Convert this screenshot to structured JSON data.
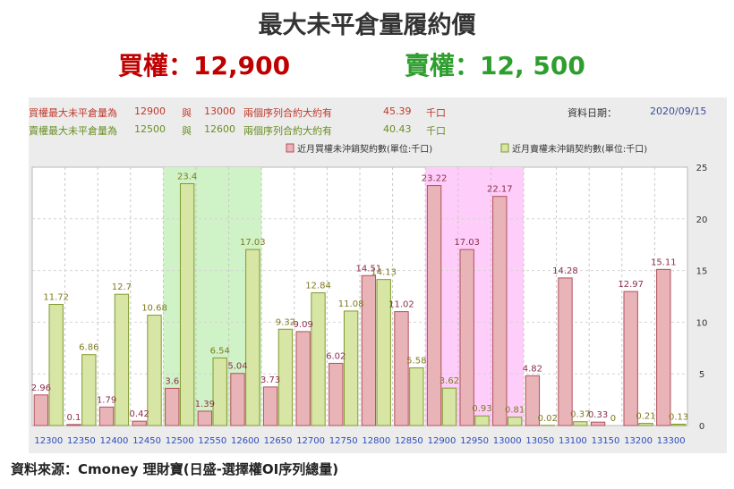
{
  "header": {
    "title": "最大未平倉量履約價",
    "call_label": "買權：12,900",
    "put_label": "賣權：12, 500"
  },
  "info": {
    "call_line": {
      "prefix": "買權最大未平倉量為",
      "strike1": "12900",
      "conj": "與",
      "strike2": "13000",
      "desc": "兩個序列合約大約有",
      "value": "45.39",
      "unit": "千口"
    },
    "put_line": {
      "prefix": "賣權最大未平倉量為",
      "strike1": "12500",
      "conj": "與",
      "strike2": "12600",
      "desc": "兩個序列合約大約有",
      "value": "40.43",
      "unit": "千口"
    },
    "date_label": "資料日期：",
    "date_value": "2020/09/15"
  },
  "footer": {
    "source": "資料來源：Cmoney 理財寶(日盛-選擇權OI序列總量)"
  },
  "colors": {
    "call_fill": "#e8b4b8",
    "call_stroke": "#b2505b",
    "put_fill": "#d7e5a5",
    "put_stroke": "#7f9a2e",
    "call_highlight": "#ffcdfa",
    "put_highlight": "#cff2c6",
    "call_label": "#8b2e4a",
    "put_label": "#7f7a1e",
    "axis_label": "#2c4bbd"
  },
  "chart_data": {
    "type": "bar",
    "categories": [
      "12300",
      "12350",
      "12400",
      "12450",
      "12500",
      "12550",
      "12600",
      "12650",
      "12700",
      "12750",
      "12800",
      "12850",
      "12900",
      "12950",
      "13000",
      "13050",
      "13100",
      "13150",
      "13200",
      "13300"
    ],
    "series": [
      {
        "name": "近月買權未沖銷契約數(單位:千口)",
        "values": [
          2.96,
          0.1,
          1.79,
          0.42,
          3.6,
          1.39,
          5.04,
          3.73,
          9.09,
          6.02,
          14.51,
          11.02,
          23.22,
          17.03,
          22.17,
          4.82,
          14.28,
          0.33,
          12.97,
          15.11
        ]
      },
      {
        "name": "近月賣權未沖銷契約數(單位:千口)",
        "values": [
          11.72,
          6.86,
          12.7,
          10.68,
          23.4,
          6.54,
          17.03,
          9.32,
          12.84,
          11.08,
          14.13,
          5.58,
          3.62,
          0.93,
          0.81,
          0.02,
          0.37,
          0,
          0.21,
          0.13
        ]
      }
    ],
    "ylim": [
      0,
      25
    ],
    "yticks": [
      0,
      5,
      10,
      15,
      20,
      25
    ],
    "highlight_ranges": [
      {
        "series": "put",
        "from": "12500",
        "to": "12600"
      },
      {
        "series": "call",
        "from": "12900",
        "to": "13000"
      }
    ],
    "grid": true,
    "legend_position": "top-right"
  }
}
